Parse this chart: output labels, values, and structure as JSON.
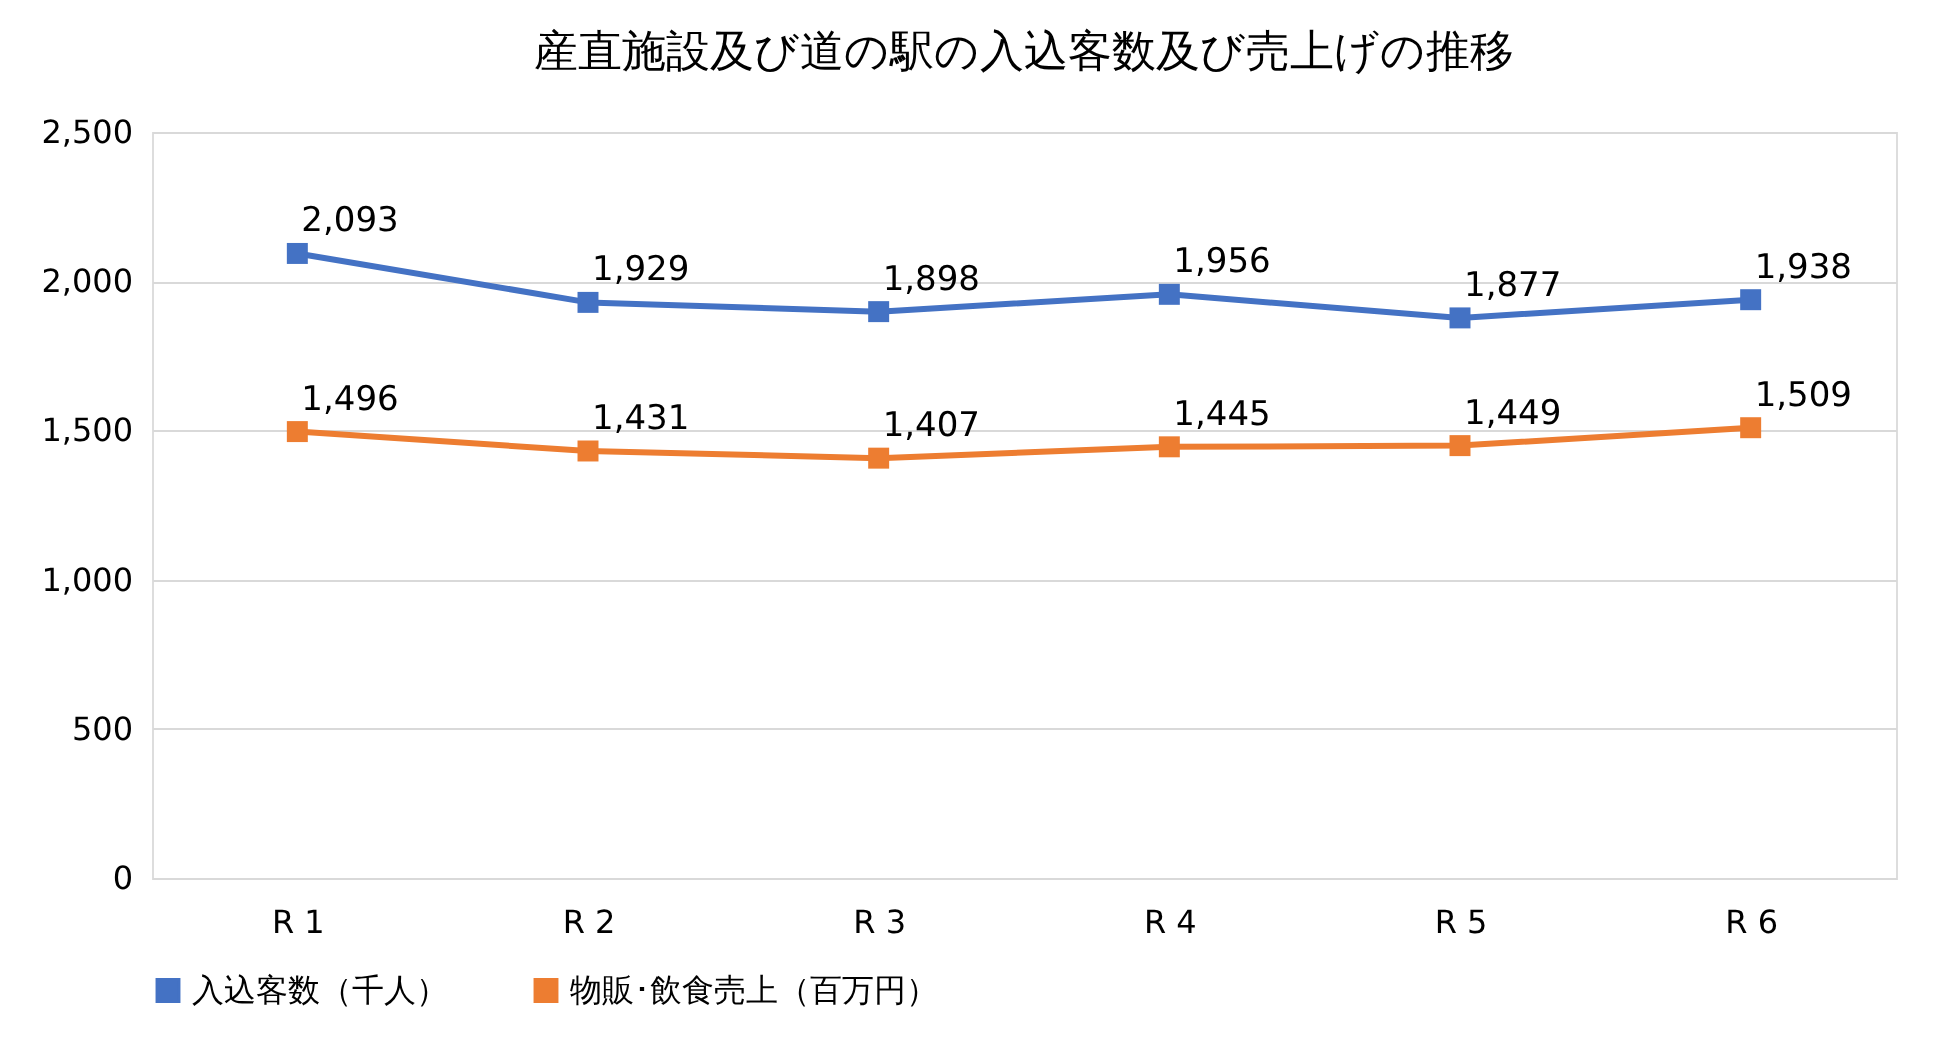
{
  "chart_data": {
    "type": "line",
    "title": "産直施設及び道の駅の入込客数及び売上げの推移",
    "categories": [
      "R 1",
      "R 2",
      "R 3",
      "R 4",
      "R 5",
      "R 6"
    ],
    "series": [
      {
        "name": "入込客数（千人）",
        "color": "#4472c4",
        "values": [
          2093,
          1929,
          1898,
          1956,
          1877,
          1938
        ],
        "value_labels": [
          "2,093",
          "1,929",
          "1,898",
          "1,956",
          "1,877",
          "1,938"
        ]
      },
      {
        "name": "物販･飲食売上（百万円）",
        "color": "#ed7d31",
        "values": [
          1496,
          1431,
          1407,
          1445,
          1449,
          1509
        ],
        "value_labels": [
          "1,496",
          "1,431",
          "1,407",
          "1,445",
          "1,449",
          "1,509"
        ]
      }
    ],
    "ylim": [
      0,
      2500
    ],
    "yticks": [
      0,
      {
        "value": 500,
        "label": "500"
      },
      {
        "value": 1000,
        "label": "1,000"
      },
      {
        "value": 1500,
        "label": "1,500"
      },
      {
        "value": 2000,
        "label": "2,000"
      },
      {
        "value": 2500,
        "label": "2,500"
      }
    ],
    "grid": "y",
    "legend": "bottom",
    "marker": "square",
    "line_style": "solid"
  }
}
